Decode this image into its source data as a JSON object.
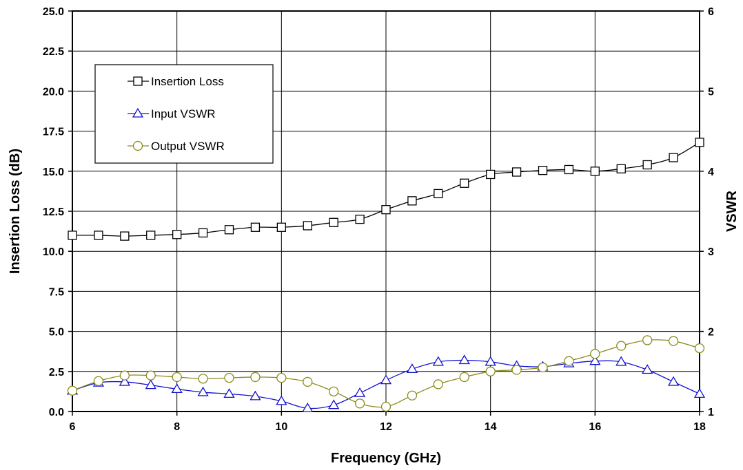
{
  "chart_data": {
    "type": "line",
    "title": "",
    "xlabel": "Frequency (GHz)",
    "ylabel": "Insertion Loss (dB)",
    "y2label": "VSWR",
    "xlim": [
      6,
      18
    ],
    "ylim": [
      0,
      25
    ],
    "y2lim": [
      1,
      6
    ],
    "x_ticks": [
      "6",
      "8",
      "10",
      "12",
      "14",
      "16",
      "18"
    ],
    "y_ticks": [
      "0.0",
      "2.5",
      "5.0",
      "7.5",
      "10.0",
      "12.5",
      "15.0",
      "17.5",
      "20.0",
      "22.5",
      "25.0"
    ],
    "y2_ticks": [
      "1",
      "2",
      "3",
      "4",
      "5",
      "6"
    ],
    "grid": true,
    "legend_position": "top-left",
    "x": [
      6,
      6.5,
      7,
      7.5,
      8,
      8.5,
      9,
      9.5,
      10,
      10.5,
      11,
      11.5,
      12,
      12.5,
      13,
      13.5,
      14,
      14.5,
      15,
      15.5,
      16,
      16.5,
      17,
      17.5,
      18
    ],
    "series": [
      {
        "name": "Insertion Loss",
        "axis": "left",
        "marker": "square",
        "color": "#000000",
        "values": [
          11.0,
          11.0,
          10.95,
          11.0,
          11.05,
          11.15,
          11.35,
          11.5,
          11.5,
          11.6,
          11.8,
          12.0,
          12.6,
          13.15,
          13.6,
          14.25,
          14.8,
          14.95,
          15.05,
          15.1,
          15.0,
          15.15,
          15.4,
          15.85,
          16.8
        ]
      },
      {
        "name": "Input VSWR",
        "axis": "right",
        "marker": "triangle",
        "color": "#1010d0",
        "values": [
          1.26,
          1.36,
          1.37,
          1.33,
          1.28,
          1.24,
          1.22,
          1.19,
          1.13,
          1.04,
          1.08,
          1.23,
          1.39,
          1.53,
          1.62,
          1.64,
          1.62,
          1.57,
          1.56,
          1.6,
          1.63,
          1.62,
          1.52,
          1.37,
          1.22
        ]
      },
      {
        "name": "Output VSWR",
        "axis": "right",
        "marker": "circle",
        "color": "#8b8b1a",
        "values": [
          1.26,
          1.38,
          1.45,
          1.45,
          1.43,
          1.41,
          1.42,
          1.43,
          1.42,
          1.37,
          1.25,
          1.1,
          1.06,
          1.2,
          1.34,
          1.43,
          1.5,
          1.52,
          1.55,
          1.63,
          1.72,
          1.82,
          1.89,
          1.88,
          1.79
        ]
      }
    ]
  }
}
